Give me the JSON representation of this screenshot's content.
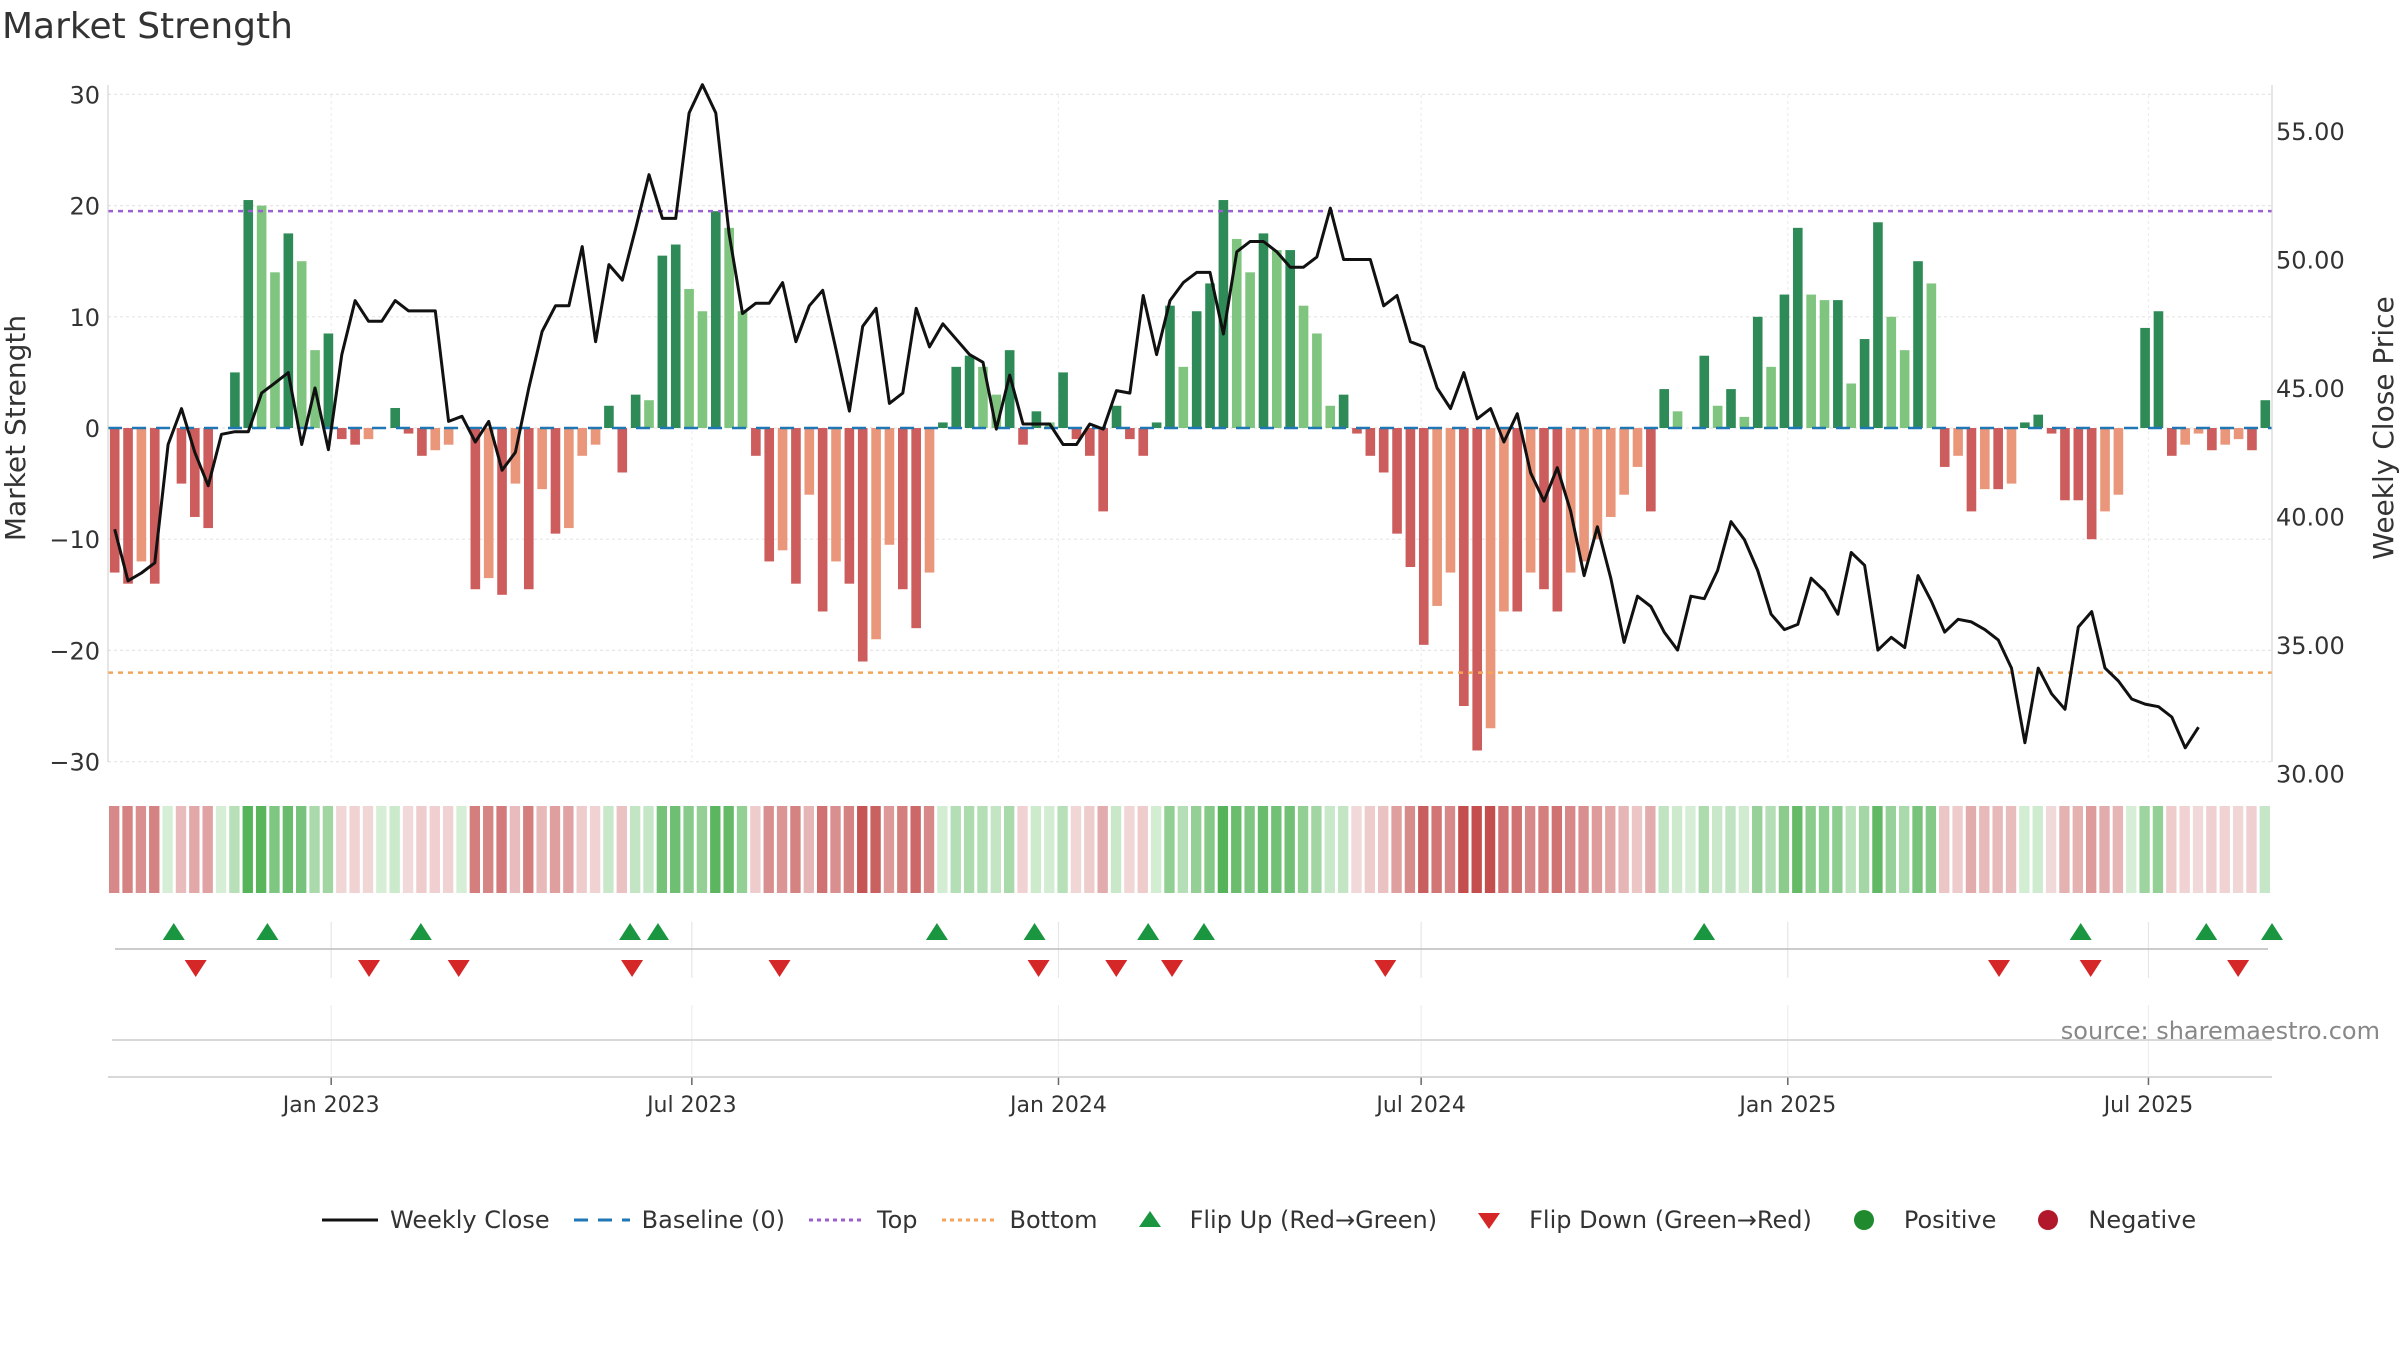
{
  "chart_data": {
    "type": "bar",
    "title": "Market Strength",
    "ylabel_left": "Market Strength",
    "ylabel_right": "Weekly Close Price",
    "source": "source: sharemaestro.com",
    "y_left_ticks": [
      "30",
      "20",
      "10",
      "0",
      "−10",
      "−20",
      "−30"
    ],
    "y_left_tick_values": [
      30,
      20,
      10,
      0,
      -10,
      -20,
      -30
    ],
    "ylim_left": [
      -30,
      30
    ],
    "y_right_ticks": [
      "55.00",
      "50.00",
      "45.00",
      "40.00",
      "35.00",
      "30.00"
    ],
    "y_right_tick_values": [
      55,
      50,
      45,
      40,
      35,
      30
    ],
    "ylim_right": [
      29.5,
      56.5
    ],
    "x_ticks": [
      "Jan 2023",
      "Jul 2023",
      "Jan 2024",
      "Jul 2024",
      "Jan 2025",
      "Jul 2025"
    ],
    "x_tick_dates": [
      "2023-01-01",
      "2023-07-01",
      "2024-01-01",
      "2024-07-01",
      "2025-01-01",
      "2025-07-01"
    ],
    "x_start_date": "2022-09-11",
    "x_end_date": "2025-09-01",
    "top_line": 19.5,
    "bottom_line": -22,
    "week_dates": [
      "2022-09-16",
      "2022-09-23",
      "2022-09-30",
      "2022-10-07",
      "2022-10-14",
      "2022-10-21",
      "2022-10-28",
      "2022-11-04",
      "2022-11-11",
      "2022-11-18",
      "2022-11-25",
      "2022-12-02",
      "2022-12-09",
      "2022-12-16",
      "2022-12-23",
      "2022-12-30",
      "2023-01-06",
      "2023-01-13",
      "2023-01-20",
      "2023-01-27",
      "2023-02-03",
      "2023-02-10",
      "2023-02-17",
      "2023-02-24",
      "2023-03-03",
      "2023-03-10",
      "2023-03-17",
      "2023-03-24",
      "2023-03-31",
      "2023-04-07",
      "2023-04-14",
      "2023-04-21",
      "2023-04-28",
      "2023-05-05",
      "2023-05-12",
      "2023-05-19",
      "2023-05-26",
      "2023-06-02",
      "2023-06-09",
      "2023-06-16",
      "2023-06-23",
      "2023-06-30",
      "2023-07-07",
      "2023-07-14",
      "2023-07-21",
      "2023-07-28",
      "2023-08-04",
      "2023-08-11",
      "2023-08-18",
      "2023-08-25",
      "2023-09-01",
      "2023-09-08",
      "2023-09-15",
      "2023-09-22",
      "2023-09-29",
      "2023-10-06",
      "2023-10-13",
      "2023-10-20",
      "2023-10-27",
      "2023-11-03",
      "2023-11-10",
      "2023-11-17",
      "2023-11-24",
      "2023-12-01",
      "2023-12-08",
      "2023-12-15",
      "2023-12-22",
      "2023-12-29",
      "2024-01-05",
      "2024-01-12",
      "2024-01-19",
      "2024-01-26",
      "2024-02-02",
      "2024-02-09",
      "2024-02-16",
      "2024-02-23",
      "2024-03-01",
      "2024-03-08",
      "2024-03-15",
      "2024-03-22",
      "2024-03-29",
      "2024-04-05",
      "2024-04-12",
      "2024-04-19",
      "2024-04-26",
      "2024-05-03",
      "2024-05-10",
      "2024-05-17",
      "2024-05-24",
      "2024-05-31",
      "2024-06-07",
      "2024-06-14",
      "2024-06-21",
      "2024-06-28",
      "2024-07-05",
      "2024-07-12",
      "2024-07-19",
      "2024-07-26",
      "2024-08-02",
      "2024-08-09",
      "2024-08-16",
      "2024-08-23",
      "2024-08-30",
      "2024-09-06",
      "2024-09-13",
      "2024-09-20",
      "2024-09-27",
      "2024-10-04",
      "2024-10-11",
      "2024-10-18",
      "2024-10-25",
      "2024-11-01",
      "2024-11-08",
      "2024-11-15",
      "2024-11-22",
      "2024-11-29",
      "2024-12-06",
      "2024-12-13",
      "2024-12-20",
      "2024-12-27",
      "2025-01-03",
      "2025-01-10",
      "2025-01-17",
      "2025-01-24",
      "2025-01-31",
      "2025-02-07",
      "2025-02-14",
      "2025-02-21",
      "2025-02-28",
      "2025-03-07",
      "2025-03-14",
      "2025-03-21",
      "2025-03-28",
      "2025-04-04",
      "2025-04-11",
      "2025-04-18",
      "2025-04-25",
      "2025-05-02",
      "2025-05-09",
      "2025-05-16",
      "2025-05-23",
      "2025-05-30",
      "2025-06-06",
      "2025-06-13",
      "2025-06-20",
      "2025-06-27",
      "2025-07-04",
      "2025-07-11",
      "2025-07-18",
      "2025-07-25",
      "2025-08-01",
      "2025-08-08",
      "2025-08-15",
      "2025-08-22",
      "2025-08-29"
    ],
    "strength": [
      -13,
      -14,
      -12,
      -14,
      0,
      -5,
      -8,
      -9,
      0,
      5,
      20.5,
      20,
      14,
      17.5,
      15,
      7,
      8.5,
      -1,
      -1.5,
      -1,
      0,
      1.8,
      -0.5,
      -2.5,
      -2,
      -1.5,
      0,
      -14.5,
      -13.5,
      -15,
      -5,
      -14.5,
      -5.5,
      -9.5,
      -9,
      -2.5,
      -1.5,
      2,
      -4,
      3,
      2.5,
      15.5,
      16.5,
      12.5,
      10.5,
      19.5,
      18,
      10.5,
      -2.5,
      -12,
      -11,
      -14,
      -6,
      -16.5,
      -12,
      -14,
      -21,
      -19,
      -10.5,
      -14.5,
      -18,
      -13,
      0.5,
      5.5,
      6.5,
      5.5,
      3,
      7,
      -1.5,
      1.5,
      0.5,
      5,
      -1,
      -2.5,
      -7.5,
      2,
      -1,
      -2.5,
      0.5,
      11,
      5.5,
      10.5,
      13,
      20.5,
      17,
      14,
      17.5,
      16,
      16,
      11,
      8.5,
      2,
      3,
      -0.5,
      -2.5,
      -4,
      -9.5,
      -12.5,
      -19.5,
      -16,
      -13,
      -25,
      -29,
      -27,
      -16.5,
      -16.5,
      -13,
      -14.5,
      -16.5,
      -13,
      -12,
      -10,
      -8,
      -6,
      -3.5,
      -7.5,
      3.5,
      1.5,
      0,
      6.5,
      2,
      3.5,
      1,
      10,
      5.5,
      12,
      18,
      12,
      11.5,
      11.5,
      4,
      8,
      18.5,
      10,
      7,
      15,
      13,
      -3.5,
      -2.5,
      -7.5,
      -5.5,
      -5.5,
      -5,
      0.5,
      1.2,
      -0.5,
      -6.5,
      -6.5,
      -10,
      -7.5,
      -6,
      0,
      9,
      10.5,
      -2.5,
      -1.5,
      -0.5,
      -2,
      -1.5,
      -1,
      -2,
      2.5
    ],
    "weekly_close": [
      39.5,
      37.5,
      37.8,
      38.2,
      42.8,
      44.2,
      42.5,
      41.2,
      43.2,
      43.3,
      43.3,
      44.8,
      45.2,
      45.6,
      42.8,
      45,
      42.6,
      46.3,
      48.4,
      47.6,
      47.6,
      48.4,
      48,
      48,
      48,
      43.7,
      43.9,
      42.9,
      43.7,
      41.8,
      42.5,
      45,
      47.2,
      48.2,
      48.2,
      50.5,
      46.8,
      49.8,
      49.2,
      51.2,
      53.3,
      51.6,
      51.6,
      55.7,
      56.8,
      55.7,
      51,
      47.9,
      48.3,
      48.3,
      49.1,
      46.8,
      48.2,
      48.8,
      46.5,
      44.1,
      47.4,
      48.1,
      44.4,
      44.8,
      48.1,
      46.6,
      47.5,
      46.9,
      46.3,
      46,
      43.4,
      45.5,
      43.6,
      43.6,
      43.6,
      42.8,
      42.8,
      43.6,
      43.4,
      44.9,
      44.8,
      48.6,
      46.3,
      48.4,
      49.1,
      49.5,
      49.5,
      47.1,
      50.3,
      50.7,
      50.7,
      50.3,
      49.7,
      49.7,
      50.1,
      52,
      50,
      50,
      50,
      48.2,
      48.6,
      46.8,
      46.6,
      45,
      44.2,
      45.6,
      43.8,
      44.2,
      42.9,
      44,
      41.7,
      40.6,
      41.9,
      40.2,
      37.7,
      39.6,
      37.6,
      35.1,
      36.9,
      36.5,
      35.5,
      34.8,
      36.9,
      36.8,
      37.9,
      39.8,
      39.1,
      37.9,
      36.2,
      35.6,
      35.8,
      37.6,
      37.1,
      36.2,
      38.6,
      38.1,
      34.8,
      35.3,
      34.9,
      37.7,
      36.7,
      35.5,
      36,
      35.9,
      35.6,
      35.2,
      34.1,
      31.2,
      34.1,
      33.1,
      32.5,
      35.7,
      36.3,
      34.1,
      33.6,
      32.9,
      32.7,
      32.6,
      32.2,
      31,
      31.8
    ],
    "flip_up_dates": [
      "2022-10-14",
      "2022-11-30",
      "2023-02-15",
      "2023-05-31",
      "2023-06-14",
      "2023-11-01",
      "2023-12-20",
      "2024-02-15",
      "2024-03-14",
      "2024-11-20",
      "2025-05-28",
      "2025-07-30",
      "2025-09-01"
    ],
    "flip_down_dates": [
      "2022-10-25",
      "2023-01-20",
      "2023-03-06",
      "2023-06-01",
      "2023-08-14",
      "2023-12-22",
      "2024-01-30",
      "2024-02-27",
      "2024-06-13",
      "2025-04-17",
      "2025-06-02",
      "2025-08-15"
    ],
    "legend": [
      {
        "label": "Weekly Close",
        "kind": "line",
        "color": "#111111"
      },
      {
        "label": "Baseline (0)",
        "kind": "dash",
        "color": "#1f77b4"
      },
      {
        "label": "Top",
        "kind": "dot",
        "color": "#9a5fd1"
      },
      {
        "label": "Bottom",
        "kind": "dot",
        "color": "#f2a65a"
      },
      {
        "label": "Flip Up (Red→Green)",
        "kind": "tri-up",
        "color": "#1a9641"
      },
      {
        "label": "Flip Down (Green→Red)",
        "kind": "tri-down",
        "color": "#d62728"
      },
      {
        "label": "Positive",
        "kind": "circle",
        "color": "#1f8a2e"
      },
      {
        "label": "Negative",
        "kind": "circle",
        "color": "#b2182b"
      }
    ],
    "colors": {
      "pos_dark": "#2e8b57",
      "pos_light": "#7fc47f",
      "neg_dark": "#cd5c5c",
      "neg_light": "#e9967a",
      "baseline": "#1f77b4",
      "top": "#9a5fd1",
      "bottom": "#f2a65a",
      "close": "#111111",
      "flip_up": "#1a9641",
      "flip_down": "#d62728"
    }
  }
}
